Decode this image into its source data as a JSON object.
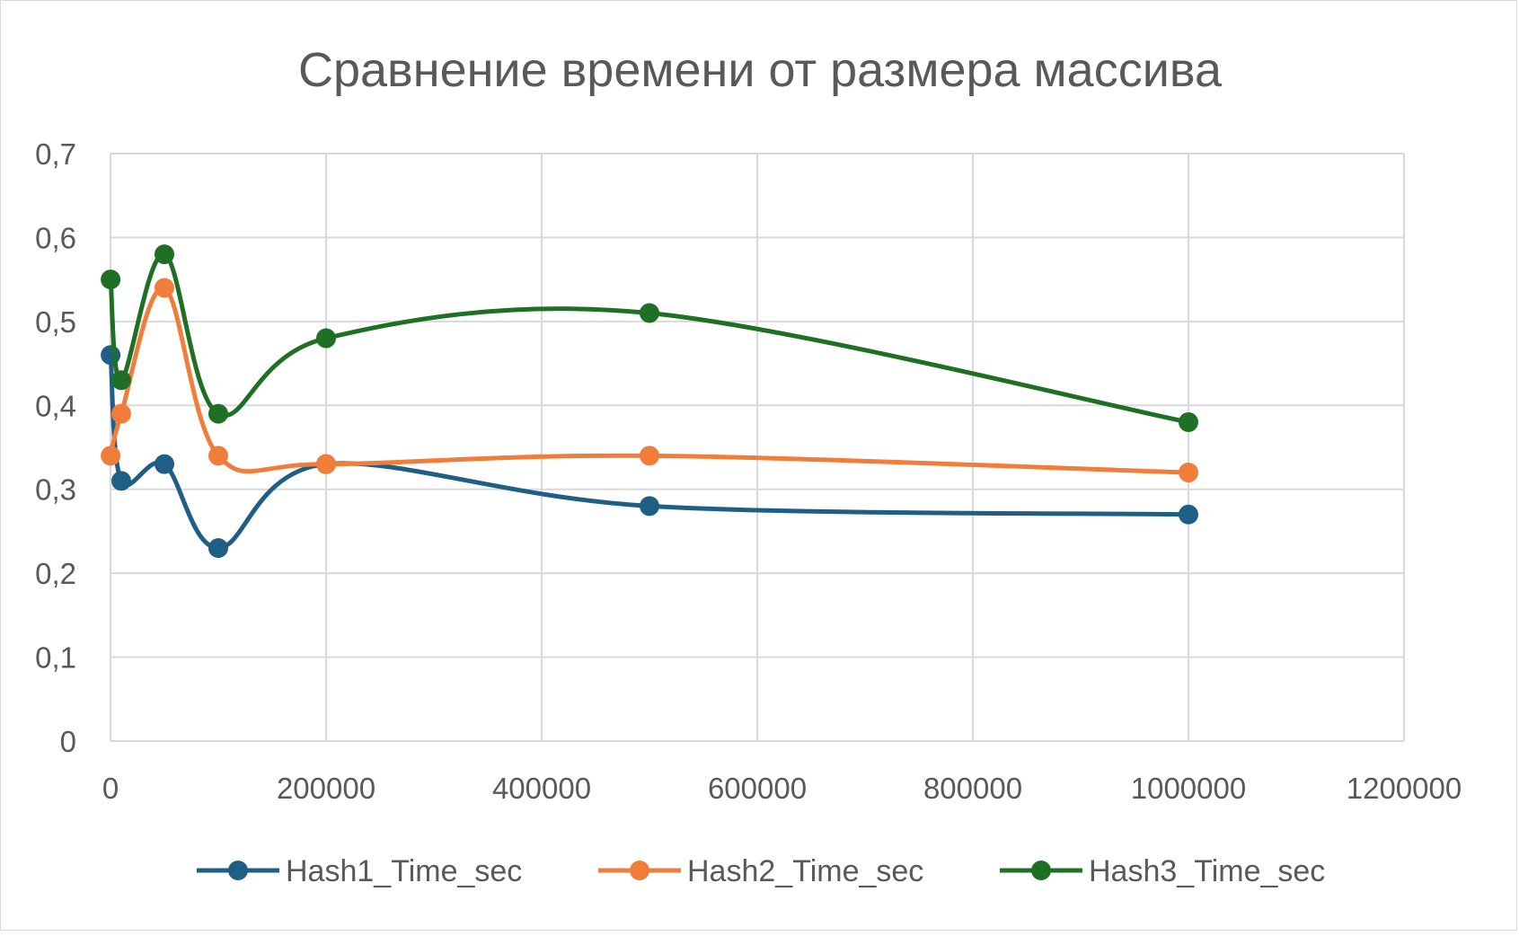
{
  "chart_data": {
    "type": "line",
    "smooth": true,
    "title": "Сравнение времени от размера массива",
    "xlabel": "",
    "ylabel": "",
    "xlim": [
      0,
      1200000
    ],
    "ylim": [
      0,
      0.7
    ],
    "x_ticks": [
      "0",
      "200000",
      "400000",
      "600000",
      "800000",
      "1000000",
      "1200000"
    ],
    "y_ticks": [
      "0",
      "0,1",
      "0,2",
      "0,3",
      "0,4",
      "0,5",
      "0,6",
      "0,7"
    ],
    "grid": true,
    "legend_position": "bottom",
    "x": [
      100,
      10000,
      50000,
      100000,
      200000,
      500000,
      1000000
    ],
    "series": [
      {
        "name": "Hash1_Time_sec",
        "color": "#1f5f86",
        "values": [
          0.46,
          0.31,
          0.33,
          0.23,
          0.33,
          0.28,
          0.27
        ]
      },
      {
        "name": "Hash2_Time_sec",
        "color": "#f07d3a",
        "values": [
          0.34,
          0.39,
          0.54,
          0.34,
          0.33,
          0.34,
          0.32
        ]
      },
      {
        "name": "Hash3_Time_sec",
        "color": "#1f7025",
        "values": [
          0.55,
          0.43,
          0.58,
          0.39,
          0.48,
          0.51,
          0.38
        ]
      }
    ]
  }
}
